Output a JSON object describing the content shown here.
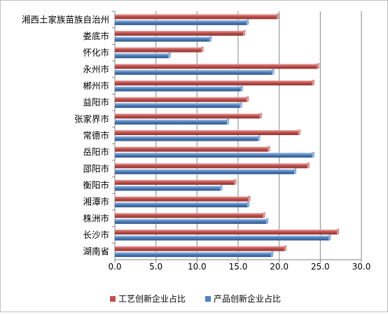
{
  "chart_data": {
    "type": "bar",
    "orientation": "horizontal",
    "categories": [
      "湘西土家族苗族自治州",
      "娄底市",
      "怀化市",
      "永州市",
      "郴州市",
      "益阳市",
      "张家界市",
      "常德市",
      "岳阳市",
      "邵阳市",
      "衡阳市",
      "湘潭市",
      "株洲市",
      "长沙市",
      "湖南省"
    ],
    "series": [
      {
        "name": "工艺创新企业占比",
        "color": "#c0504d",
        "values": [
          19.7,
          15.6,
          10.5,
          24.6,
          24.0,
          16.0,
          17.6,
          22.3,
          18.6,
          23.4,
          14.5,
          16.2,
          18.0,
          27.0,
          20.6
        ]
      },
      {
        "name": "产品创新企业占比",
        "color": "#4f81bd",
        "values": [
          16.0,
          11.5,
          6.5,
          19.1,
          15.3,
          15.2,
          13.6,
          17.4,
          24.0,
          21.8,
          12.8,
          16.1,
          18.4,
          26.0,
          19.0
        ]
      }
    ],
    "xlim": [
      0,
      30
    ],
    "ticks": [
      "0.0",
      "5.0",
      "10.0",
      "15.0",
      "20.0",
      "25.0",
      "30.0"
    ],
    "grid": true,
    "legend_position": "bottom"
  }
}
